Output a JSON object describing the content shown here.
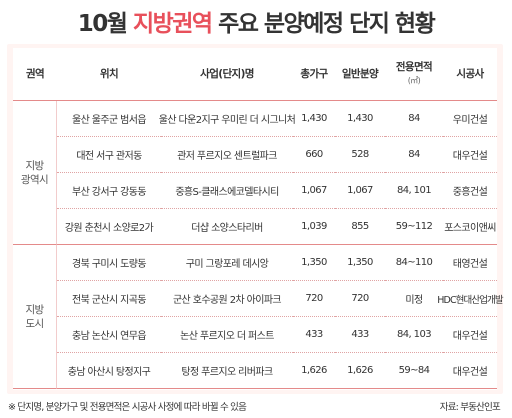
{
  "title": {
    "prefix": "10월 ",
    "highlight": "지방권역",
    "suffix": " 주요 분양예정 단지 현황"
  },
  "colors": {
    "accent": "#e8505b",
    "frame": "#fff4f2",
    "rule": "#e48a8a"
  },
  "table": {
    "headers": {
      "region": "권역",
      "location": "위치",
      "project": "사업(단지)명",
      "total_units": "총가구",
      "general_sale": "일반분양",
      "area": "전용면적",
      "area_unit": "(㎡)",
      "builder": "시공사"
    },
    "groups": [
      {
        "line1": "지방",
        "line2": "광역시"
      },
      {
        "line1": "지방",
        "line2": "도시"
      }
    ],
    "rows": [
      {
        "location": "울산 울주군 범서읍",
        "project": "울산 다운2지구 우미린 더 시그니처",
        "total": "1,430",
        "general": "1,430",
        "area": "84",
        "builder": "우미건설"
      },
      {
        "location": "대전 서구 관저동",
        "project": "관저 푸르지오 센트럴파크",
        "total": "660",
        "general": "528",
        "area": "84",
        "builder": "대우건설"
      },
      {
        "location": "부산 강서구 강동동",
        "project": "중흥S-클래스에코델타시티",
        "total": "1,067",
        "general": "1,067",
        "area": "84, 101",
        "builder": "중흥건설"
      },
      {
        "location": "강원 춘천시 소양로2가",
        "project": "더샵 소양스타리버",
        "total": "1,039",
        "general": "855",
        "area": "59~112",
        "builder": "포스코이앤씨"
      },
      {
        "location": "경북 구미시 도량동",
        "project": "구미 그랑포레 데시앙",
        "total": "1,350",
        "general": "1,350",
        "area": "84~110",
        "builder": "태영건설"
      },
      {
        "location": "전북 군산시 지곡동",
        "project": "군산 호수공원 2차 아이파크",
        "total": "720",
        "general": "720",
        "area": "미정",
        "builder": "HDC현대산업개발"
      },
      {
        "location": "충남 논산시 연무읍",
        "project": "논산 푸르지오 더 퍼스트",
        "total": "433",
        "general": "433",
        "area": "84, 103",
        "builder": "대우건설"
      },
      {
        "location": "충남 아산시 탕정지구",
        "project": "탕정 푸르지오 리버파크",
        "total": "1,626",
        "general": "1,626",
        "area": "59~84",
        "builder": "대우건설"
      }
    ]
  },
  "footnote": "※ 단지명, 분양가구 및 전용면적은 시공사 사정에 따라 바뀔 수 있음",
  "source": "자료: 부동산인포"
}
